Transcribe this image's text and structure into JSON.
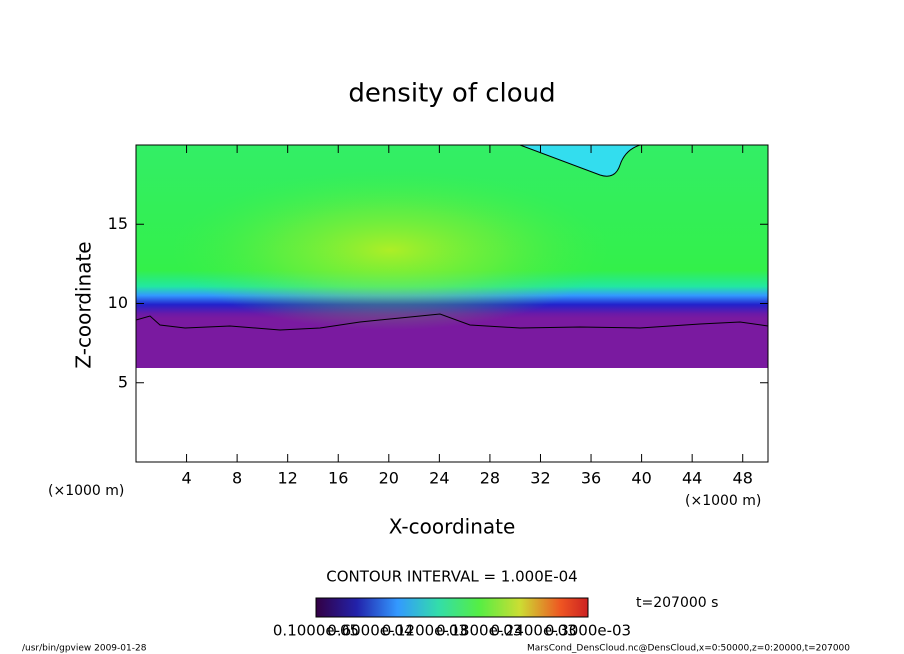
{
  "chart_data": {
    "type": "contour",
    "title": "density of cloud",
    "xlabel": "X-coordinate",
    "ylabel": "Z-coordinate",
    "x_unit_left": "(×1000 m)",
    "x_unit_right": "(×1000 m)",
    "xlim": [
      0,
      50
    ],
    "ylim": [
      0,
      20
    ],
    "xticks": [
      4,
      8,
      12,
      16,
      20,
      24,
      28,
      32,
      36,
      40,
      44,
      48
    ],
    "yticks": [
      5,
      10,
      15
    ],
    "contour_interval": "CONTOUR INTERVAL = 1.000E-04",
    "time": "t=207000 s",
    "colorbar_labels": [
      "0.1000e-05",
      "0.6000e-04",
      "0.1200e-03",
      "0.1800e-03",
      "0.2400e-03",
      "0.3000e-03"
    ],
    "footer_left": "/usr/bin/gpview  2009-01-28",
    "footer_right": "MarsCond_DensCloud.nc@DensCloud,x=0:50000,z=0:20000,t=207000"
  }
}
